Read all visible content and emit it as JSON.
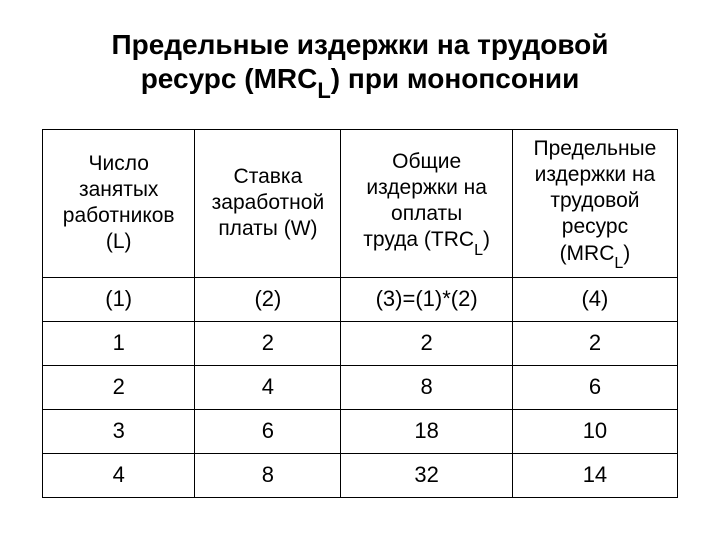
{
  "title": {
    "line1": "Предельные издержки на трудовой",
    "line2_pre": "ресурс (MRC",
    "line2_sub": "L",
    "line2_post": ") при монопсонии"
  },
  "table": {
    "headers": {
      "col1": {
        "l1": "Число",
        "l2": "занятых",
        "l3": "работников",
        "l4": "(L)"
      },
      "col2": {
        "l1": "Ставка",
        "l2": "заработной",
        "l3": "платы (W)"
      },
      "col3": {
        "l1": "Общие",
        "l2": "издержки на",
        "l3": "оплаты",
        "l4_pre": "труда (TRC",
        "l4_sub": "L",
        "l4_post": ")"
      },
      "col4": {
        "l1": "Предельные",
        "l2": "издержки на",
        "l3": "трудовой",
        "l4": "ресурс",
        "l5_pre": "(MRC",
        "l5_sub": "L",
        "l5_post": ")"
      }
    },
    "rows": [
      {
        "c1": "(1)",
        "c2": "(2)",
        "c3": "(3)=(1)*(2)",
        "c4": "(4)"
      },
      {
        "c1": "1",
        "c2": "2",
        "c3": "2",
        "c4": "2"
      },
      {
        "c1": "2",
        "c2": "4",
        "c3": "8",
        "c4": "6"
      },
      {
        "c1": "3",
        "c2": "6",
        "c3": "18",
        "c4": "10"
      },
      {
        "c1": "4",
        "c2": "8",
        "c3": "32",
        "c4": "14"
      }
    ]
  },
  "styling": {
    "background_color": "#ffffff",
    "text_color": "#000000",
    "border_color": "#000000",
    "title_fontsize": 28,
    "header_fontsize": 21,
    "cell_fontsize": 22,
    "font_family": "Arial"
  }
}
